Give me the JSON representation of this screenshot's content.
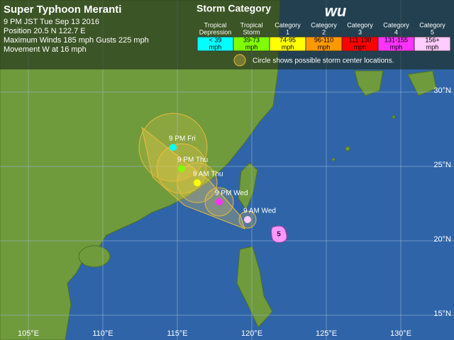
{
  "header": {
    "title": "Super Typhoon Meranti",
    "time": "9 PM JST Tue Sep 13 2016",
    "position": "Position 20.5 N 122.7 E",
    "winds": "Maximum Winds 185 mph  Gusts 225 mph",
    "movement": "Movement W at 16 mph"
  },
  "logo": "wu",
  "legend": {
    "title": "Storm Category",
    "categories": [
      {
        "name": [
          "Tropical",
          "Depression"
        ],
        "range": [
          "< 39",
          "mph"
        ],
        "color": "#00ffff"
      },
      {
        "name": [
          "Tropical",
          "Storm"
        ],
        "range": [
          "39-73",
          "mph"
        ],
        "color": "#7fff00"
      },
      {
        "name": [
          "Category",
          "1"
        ],
        "range": [
          "74-95",
          "mph"
        ],
        "color": "#ffff00"
      },
      {
        "name": [
          "Category",
          "2"
        ],
        "range": [
          "96-110",
          "mph"
        ],
        "color": "#ff9900"
      },
      {
        "name": [
          "Category",
          "3"
        ],
        "range": [
          "111-130",
          "mph"
        ],
        "color": "#ff0000"
      },
      {
        "name": [
          "Category",
          "4"
        ],
        "range": [
          "131-155",
          "mph"
        ],
        "color": "#ff33ff"
      },
      {
        "name": [
          "Category",
          "5"
        ],
        "range": [
          "156+",
          "mph"
        ],
        "color": "#ffccff"
      }
    ],
    "note": "Circle shows possible storm center locations."
  },
  "track": [
    {
      "label": "9 AM Wed",
      "color": "#ffccff"
    },
    {
      "label": "9 PM Wed",
      "color": "#ff33ff"
    },
    {
      "label": "9 AM Thu",
      "color": "#ffff00"
    },
    {
      "label": "9 PM Thu",
      "color": "#7fff00"
    },
    {
      "label": "9 PM Fri",
      "color": "#00ffff"
    }
  ],
  "storm_icon": "5",
  "latitudes": [
    "30°N",
    "25°N",
    "20°N",
    "15°N"
  ],
  "longitudes": [
    "105°E",
    "110°E",
    "115°E",
    "120°E",
    "125°E",
    "130°E"
  ]
}
